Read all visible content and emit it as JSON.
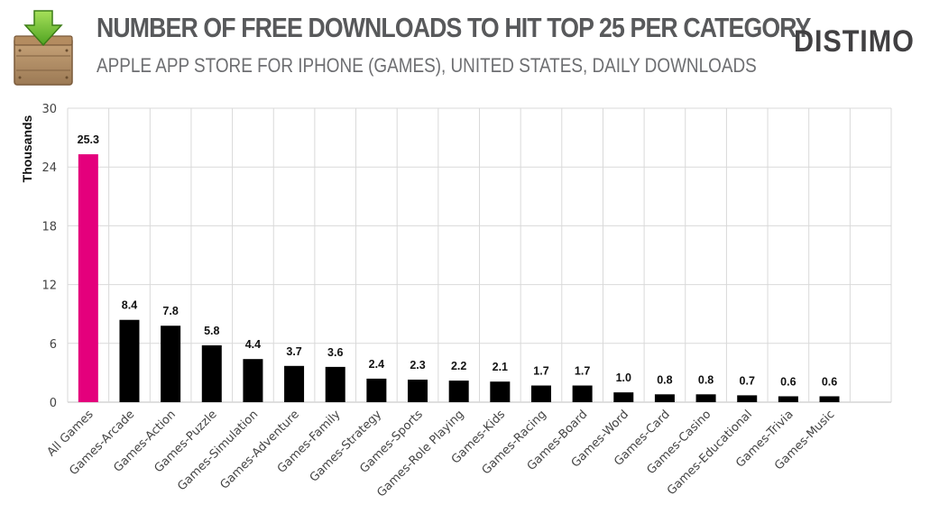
{
  "header": {
    "title": "NUMBER OF FREE DOWNLOADS TO HIT TOP 25 PER CATEGORY",
    "subtitle": "APPLE APP STORE FOR IPHONE (GAMES), UNITED STATES, DAILY DOWNLOADS",
    "logo_text": "DISTIMO",
    "icon": "download-crate-icon"
  },
  "colors": {
    "highlight_bar": "#e4007c",
    "bar": "#000000",
    "grid": "#d9d9d9"
  },
  "chart_data": {
    "type": "bar",
    "title": "NUMBER OF FREE DOWNLOADS TO HIT TOP 25 PER CATEGORY",
    "subtitle": "APPLE APP STORE FOR IPHONE (GAMES), UNITED STATES, DAILY DOWNLOADS",
    "xlabel": "",
    "ylabel": "Thousands",
    "ylim": [
      0,
      30
    ],
    "yticks": [
      0,
      6,
      12,
      18,
      24,
      30
    ],
    "grid": true,
    "categories": [
      "All Games",
      "Games-Arcade",
      "Games-Action",
      "Games-Puzzle",
      "Games-Simulation",
      "Games-Adventure",
      "Games-Family",
      "Games-Strategy",
      "Games-Sports",
      "Games-Role Playing",
      "Games-Kids",
      "Games-Racing",
      "Games-Board",
      "Games-Word",
      "Games-Card",
      "Games-Casino",
      "Games-Educational",
      "Games-Trivia",
      "Games-Music"
    ],
    "values": [
      25.3,
      8.4,
      7.8,
      5.8,
      4.4,
      3.7,
      3.6,
      2.4,
      2.3,
      2.2,
      2.1,
      1.7,
      1.7,
      1.0,
      0.8,
      0.8,
      0.7,
      0.6,
      0.6
    ],
    "value_labels": [
      "25.3",
      "8.4",
      "7.8",
      "5.8",
      "4.4",
      "3.7",
      "3.6",
      "2.4",
      "2.3",
      "2.2",
      "2.1",
      "1.7",
      "1.7",
      "1.0",
      "0.8",
      "0.8",
      "0.7",
      "0.6",
      "0.6"
    ],
    "highlight_category": "All Games"
  }
}
